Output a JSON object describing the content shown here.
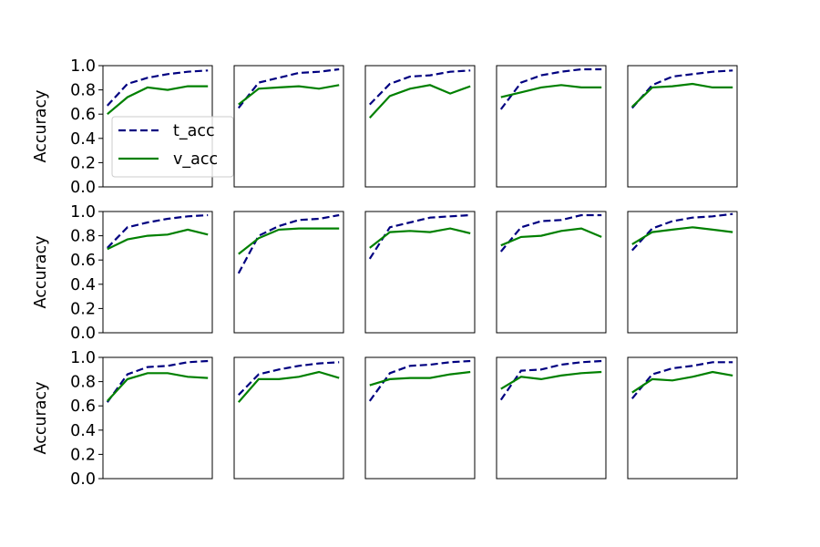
{
  "chart_data": {
    "type": "line",
    "layout": "3x5 grid of subplots",
    "ylabel": "Accuracy",
    "ylim": [
      0,
      1
    ],
    "yticks": [
      "0.0",
      "0.2",
      "0.4",
      "0.6",
      "0.8",
      "1.0"
    ],
    "x_ticks_shown": false,
    "grid": false,
    "legend": {
      "location": "lower-left of first subplot",
      "entries": [
        "t_acc",
        "v_acc"
      ]
    },
    "colors": {
      "t_acc": "#000080",
      "v_acc": "#008000"
    },
    "line_styles": {
      "t_acc": "dashed",
      "v_acc": "solid"
    },
    "x": [
      0,
      1,
      2,
      3,
      4,
      5
    ],
    "subplots": [
      {
        "t_acc": [
          0.67,
          0.85,
          0.9,
          0.93,
          0.95,
          0.96
        ],
        "v_acc": [
          0.6,
          0.74,
          0.82,
          0.8,
          0.83,
          0.83
        ]
      },
      {
        "t_acc": [
          0.65,
          0.86,
          0.9,
          0.94,
          0.95,
          0.97
        ],
        "v_acc": [
          0.68,
          0.81,
          0.82,
          0.83,
          0.81,
          0.84
        ]
      },
      {
        "t_acc": [
          0.68,
          0.85,
          0.91,
          0.92,
          0.95,
          0.96
        ],
        "v_acc": [
          0.57,
          0.75,
          0.81,
          0.84,
          0.77,
          0.83
        ]
      },
      {
        "t_acc": [
          0.64,
          0.86,
          0.92,
          0.95,
          0.97,
          0.97
        ],
        "v_acc": [
          0.74,
          0.78,
          0.82,
          0.84,
          0.82,
          0.82
        ]
      },
      {
        "t_acc": [
          0.65,
          0.84,
          0.91,
          0.93,
          0.95,
          0.96
        ],
        "v_acc": [
          0.66,
          0.82,
          0.83,
          0.85,
          0.82,
          0.82
        ]
      },
      {
        "t_acc": [
          0.7,
          0.87,
          0.91,
          0.94,
          0.96,
          0.97
        ],
        "v_acc": [
          0.69,
          0.77,
          0.8,
          0.81,
          0.85,
          0.81
        ]
      },
      {
        "t_acc": [
          0.49,
          0.8,
          0.88,
          0.93,
          0.94,
          0.97
        ],
        "v_acc": [
          0.65,
          0.78,
          0.85,
          0.86,
          0.86,
          0.86
        ]
      },
      {
        "t_acc": [
          0.61,
          0.87,
          0.91,
          0.95,
          0.96,
          0.97
        ],
        "v_acc": [
          0.7,
          0.83,
          0.84,
          0.83,
          0.86,
          0.82
        ]
      },
      {
        "t_acc": [
          0.67,
          0.87,
          0.92,
          0.93,
          0.97,
          0.97
        ],
        "v_acc": [
          0.72,
          0.79,
          0.8,
          0.84,
          0.86,
          0.79
        ]
      },
      {
        "t_acc": [
          0.68,
          0.86,
          0.92,
          0.95,
          0.96,
          0.98
        ],
        "v_acc": [
          0.73,
          0.83,
          0.85,
          0.87,
          0.85,
          0.83
        ]
      },
      {
        "t_acc": [
          0.63,
          0.86,
          0.92,
          0.93,
          0.96,
          0.97
        ],
        "v_acc": [
          0.64,
          0.82,
          0.87,
          0.87,
          0.84,
          0.83
        ]
      },
      {
        "t_acc": [
          0.69,
          0.86,
          0.9,
          0.93,
          0.95,
          0.96
        ],
        "v_acc": [
          0.63,
          0.82,
          0.82,
          0.84,
          0.88,
          0.83
        ]
      },
      {
        "t_acc": [
          0.64,
          0.87,
          0.93,
          0.94,
          0.96,
          0.97
        ],
        "v_acc": [
          0.77,
          0.82,
          0.83,
          0.83,
          0.86,
          0.88
        ]
      },
      {
        "t_acc": [
          0.65,
          0.89,
          0.9,
          0.94,
          0.96,
          0.97
        ],
        "v_acc": [
          0.74,
          0.84,
          0.82,
          0.85,
          0.87,
          0.88
        ]
      },
      {
        "t_acc": [
          0.66,
          0.86,
          0.91,
          0.93,
          0.96,
          0.96
        ],
        "v_acc": [
          0.71,
          0.82,
          0.81,
          0.84,
          0.88,
          0.85
        ]
      }
    ]
  }
}
